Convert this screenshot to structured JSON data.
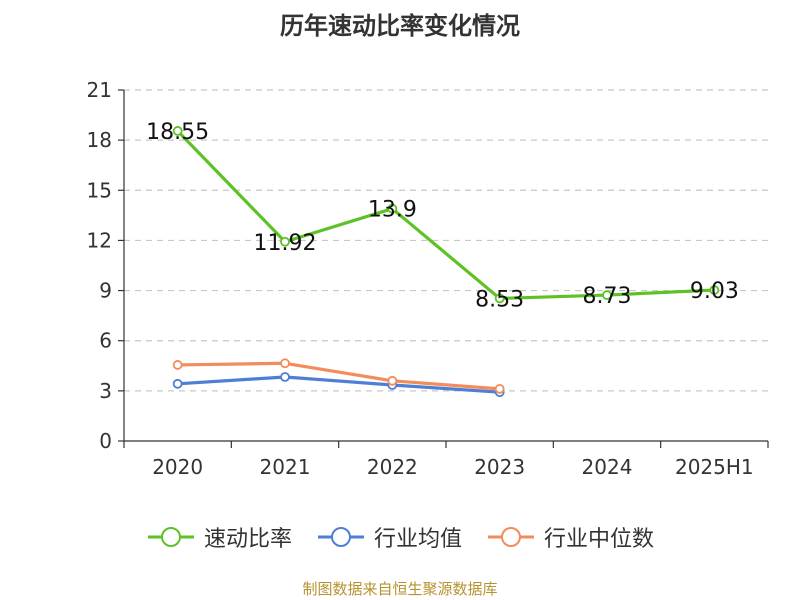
{
  "title": "历年速动比率变化情况",
  "source_note": "制图数据来自恒生聚源数据库",
  "chart_data": {
    "type": "line",
    "title": "历年速动比率变化情况",
    "xlabel": "",
    "ylabel": "",
    "categories": [
      "2020",
      "2021",
      "2022",
      "2023",
      "2024",
      "2025H1"
    ],
    "ylim": [
      0,
      21
    ],
    "yticks": [
      0,
      3,
      6,
      9,
      12,
      15,
      18,
      21
    ],
    "grid": true,
    "legend_position": "bottom",
    "series": [
      {
        "name": "速动比率",
        "color": "#5dc224",
        "values": [
          18.55,
          11.92,
          13.9,
          8.53,
          8.73,
          9.03
        ],
        "data_labels": [
          "18.55",
          "11.92",
          "13.9",
          "8.53",
          "8.73",
          "9.03"
        ]
      },
      {
        "name": "行业均值",
        "color": "#4f7ed6",
        "values": [
          3.42,
          3.83,
          3.35,
          2.92,
          null,
          null
        ]
      },
      {
        "name": "行业中位数",
        "color": "#f28c5a",
        "values": [
          4.55,
          4.65,
          3.6,
          3.12,
          null,
          null
        ]
      }
    ]
  }
}
